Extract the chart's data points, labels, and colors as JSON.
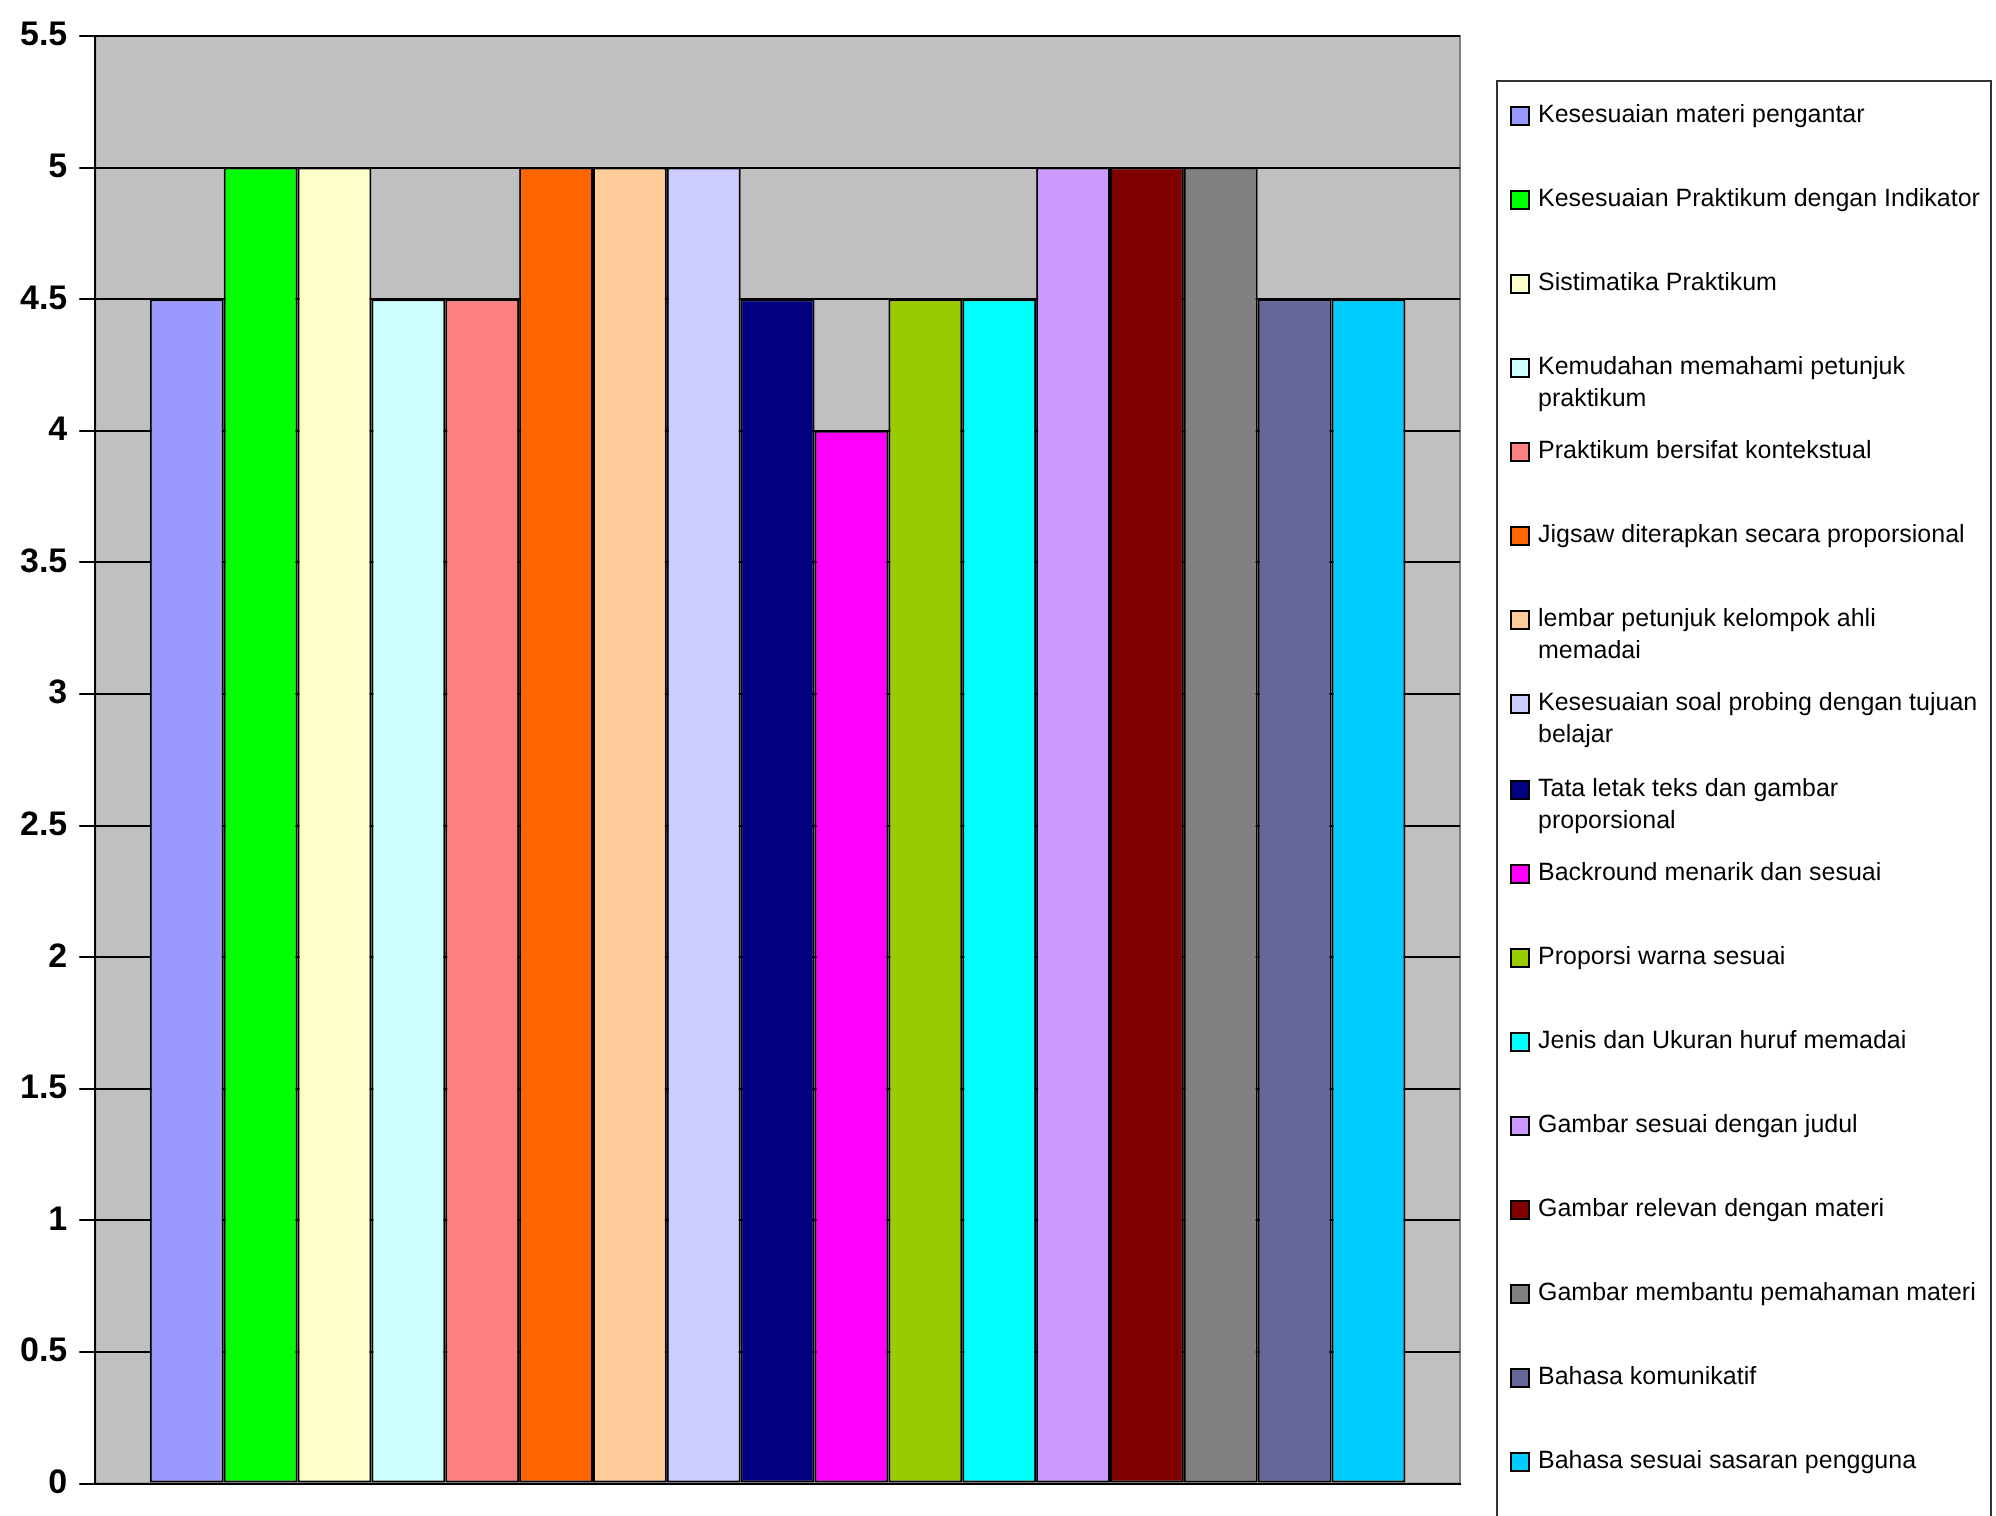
{
  "chart_data": {
    "type": "bar",
    "categories": [
      null
    ],
    "series": [
      {
        "name": "Kesesuaian materi pengantar",
        "color": "#9999ff",
        "values": [
          4.5
        ]
      },
      {
        "name": "Kesesuaian Praktikum dengan Indikator",
        "color": "#00ff00",
        "values": [
          5
        ]
      },
      {
        "name": "Sistimatika Praktikum",
        "color": "#ffffcc",
        "values": [
          5
        ]
      },
      {
        "name": "Kemudahan memahami petunjuk praktikum",
        "color": "#ccffff",
        "values": [
          4.5
        ]
      },
      {
        "name": "Praktikum bersifat kontekstual",
        "color": "#ff8080",
        "values": [
          4.5
        ]
      },
      {
        "name": "Jigsaw diterapkan  secara proporsional",
        "color": "#ff6600",
        "values": [
          5
        ]
      },
      {
        "name": "lembar petunjuk kelompok ahli memadai",
        "color": "#ffcc99",
        "values": [
          5
        ]
      },
      {
        "name": "Kesesuaian soal probing dengan tujuan belajar",
        "color": "#ccccff",
        "values": [
          5
        ]
      },
      {
        "name": "Tata letak teks dan gambar proporsional",
        "color": "#000080",
        "values": [
          4.5
        ]
      },
      {
        "name": "Backround menarik dan sesuai",
        "color": "#ff00ff",
        "values": [
          4
        ]
      },
      {
        "name": "Proporsi warna sesuai",
        "color": "#99cc00",
        "values": [
          4.5
        ]
      },
      {
        "name": "Jenis dan Ukuran huruf memadai",
        "color": "#00ffff",
        "values": [
          4.5
        ]
      },
      {
        "name": "Gambar sesuai dengan judul",
        "color": "#cc99ff",
        "values": [
          5
        ]
      },
      {
        "name": "Gambar relevan dengan materi",
        "color": "#800000",
        "values": [
          5
        ]
      },
      {
        "name": "Gambar membantu  pemahaman materi",
        "color": "#808080",
        "values": [
          5
        ]
      },
      {
        "name": "Bahasa komunikatif",
        "color": "#666699",
        "values": [
          4.5
        ]
      },
      {
        "name": "Bahasa sesuai sasaran pengguna",
        "color": "#00ccff",
        "values": [
          4.5
        ]
      }
    ],
    "ylim": [
      0,
      5.5
    ],
    "yticks": [
      0,
      0.5,
      1,
      1.5,
      2,
      2.5,
      3,
      3.5,
      4,
      4.5,
      5,
      5.5
    ],
    "grid": "y",
    "legend": "right",
    "tick_labels": "y"
  }
}
